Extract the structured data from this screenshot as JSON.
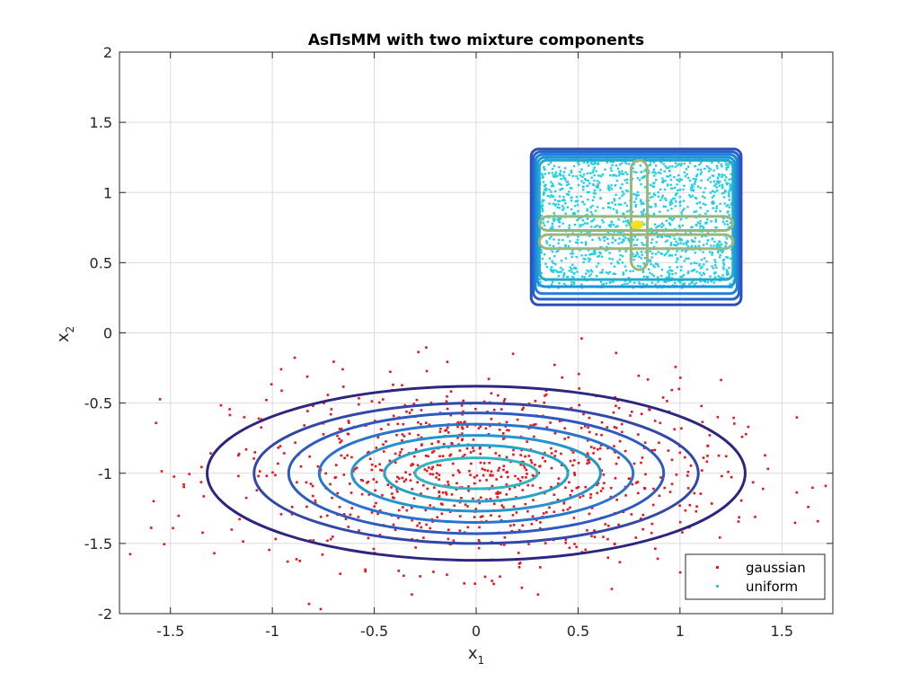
{
  "chart_data": {
    "type": "scatter",
    "title": "AsΠsMM with two mixture components",
    "xlabel": "x",
    "xlabel_sub": "1",
    "ylabel": "x",
    "ylabel_sub": "2",
    "xlim": [
      -1.75,
      1.75
    ],
    "ylim": [
      -2,
      2
    ],
    "xticks": [
      -1.5,
      -1,
      -0.5,
      0,
      0.5,
      1,
      1.5
    ],
    "yticks": [
      -2,
      -1.5,
      -1,
      -0.5,
      0,
      0.5,
      1,
      1.5,
      2
    ],
    "grid": true,
    "legend_position": "bottom-right",
    "series": [
      {
        "name": "gaussian",
        "color": "#e8141b",
        "marker": "point",
        "distribution": {
          "shape": "gaussian",
          "center": [
            0,
            -1
          ],
          "sd": [
            0.6,
            0.33
          ]
        },
        "count": 900
      },
      {
        "name": "uniform",
        "color": "#1fd0e6",
        "marker": "point",
        "distribution": {
          "shape": "uniform",
          "xrange": [
            0.3,
            1.27
          ],
          "yrange": [
            0.32,
            1.25
          ]
        },
        "count": 1400
      }
    ],
    "contours": {
      "gaussian_component": {
        "center": [
          0,
          -1
        ],
        "levels": [
          {
            "rx": 1.32,
            "ry": 0.62,
            "color": "#2d2680"
          },
          {
            "rx": 1.09,
            "ry": 0.5,
            "color": "#3347a6"
          },
          {
            "rx": 0.92,
            "ry": 0.43,
            "color": "#2e59c0"
          },
          {
            "rx": 0.77,
            "ry": 0.35,
            "color": "#2a74cd"
          },
          {
            "rx": 0.61,
            "ry": 0.27,
            "color": "#2793cd"
          },
          {
            "rx": 0.45,
            "ry": 0.2,
            "color": "#28a2c8"
          },
          {
            "rx": 0.3,
            "ry": 0.11,
            "color": "#2fb6c0"
          }
        ]
      },
      "uniform_component": {
        "boxes": [
          {
            "x": [
              0.27,
              1.3
            ],
            "y": [
              0.2,
              1.31
            ],
            "color": "#2e4fb7"
          },
          {
            "x": [
              0.28,
              1.29
            ],
            "y": [
              0.24,
              1.29
            ],
            "color": "#2463cf"
          },
          {
            "x": [
              0.29,
              1.28
            ],
            "y": [
              0.28,
              1.27
            ],
            "color": "#1f7fdb"
          },
          {
            "x": [
              0.3,
              1.27
            ],
            "y": [
              0.33,
              1.25
            ],
            "color": "#1d96d9"
          },
          {
            "x": [
              0.31,
              1.26
            ],
            "y": [
              0.38,
              1.23
            ],
            "color": "#23aac9"
          }
        ],
        "bands": [
          {
            "x": [
              0.31,
              1.26
            ],
            "y": [
              0.73,
              0.83
            ],
            "color": "#95b67d"
          },
          {
            "x": [
              0.31,
              1.26
            ],
            "y": [
              0.6,
              0.7
            ],
            "color": "#9cb67a"
          },
          {
            "x": [
              0.76,
              0.84
            ],
            "y": [
              0.45,
              1.23
            ],
            "color": "#9cb67a"
          }
        ],
        "peak": {
          "x": 0.79,
          "y": 0.77,
          "color": "#f4e023"
        }
      }
    }
  }
}
